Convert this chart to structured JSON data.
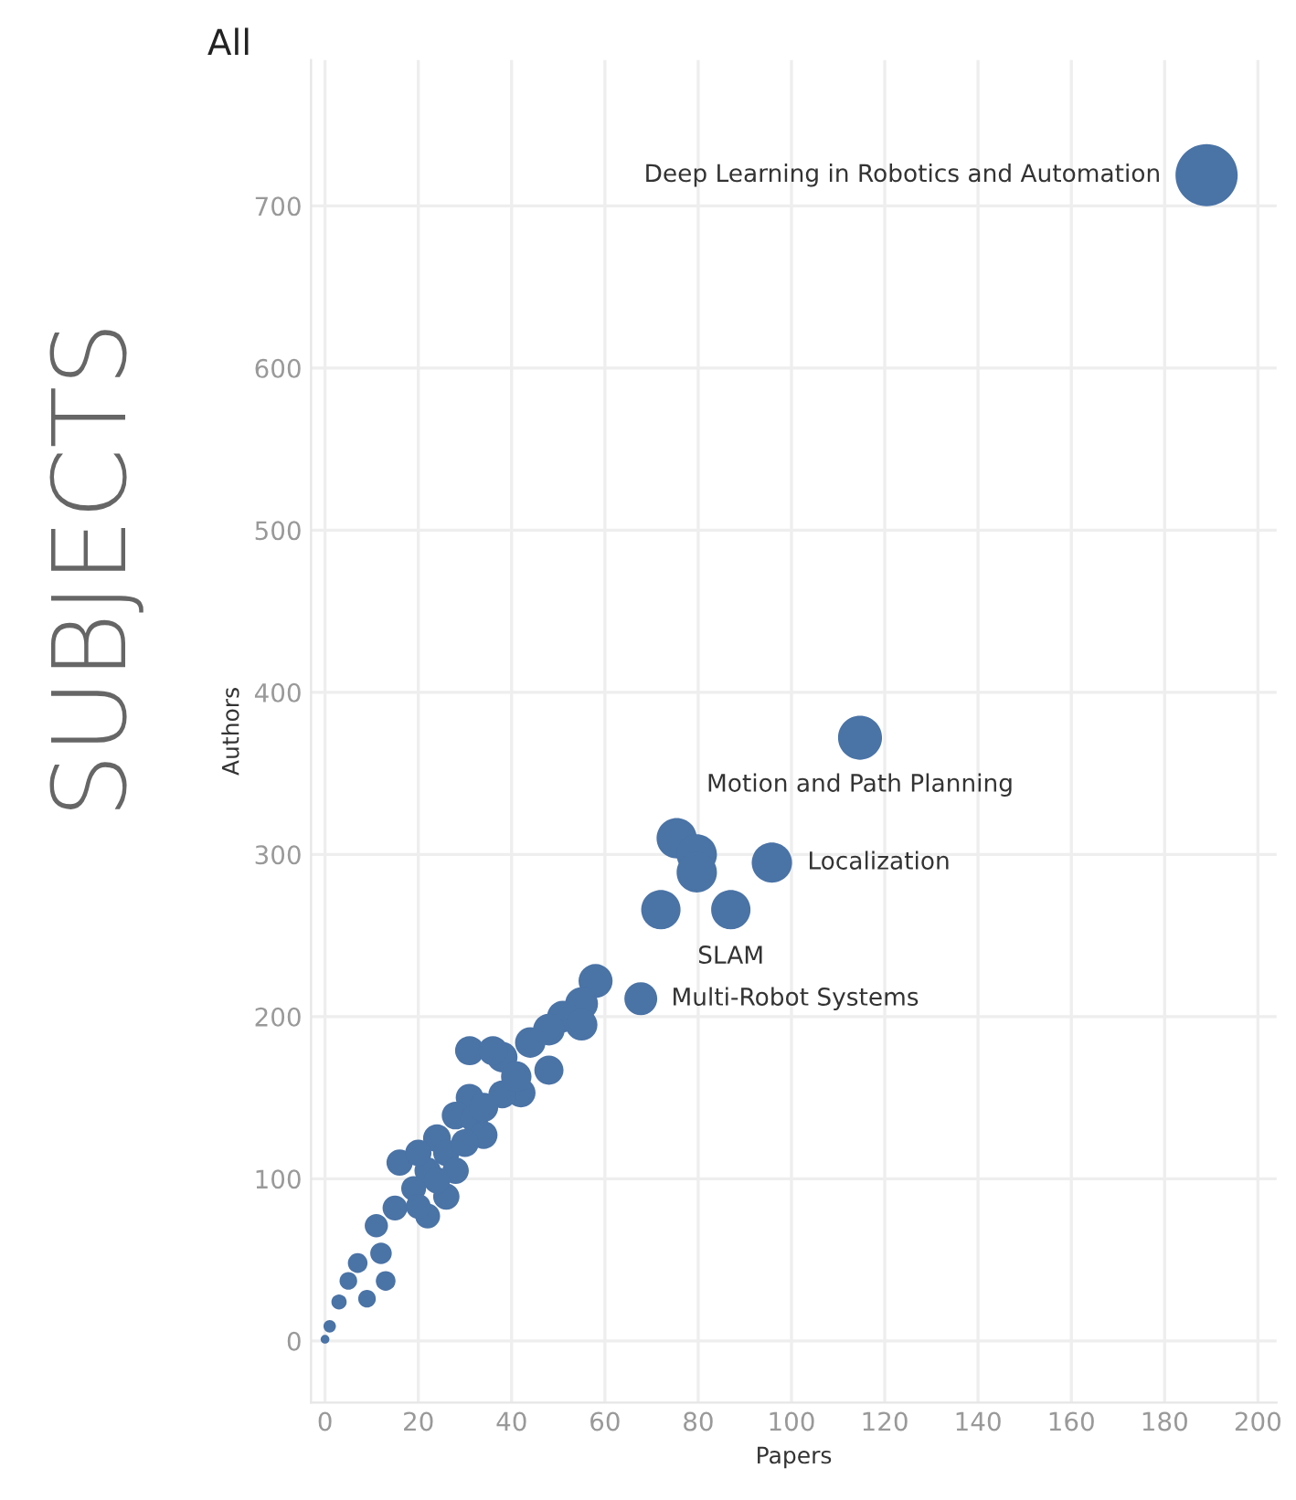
{
  "chart_data": {
    "type": "bubble",
    "title": "SUBJECTS",
    "subtitle": "All",
    "xlabel": "Papers",
    "ylabel": "Authors",
    "xlim": [
      -3,
      204
    ],
    "xticks": [
      0,
      20,
      40,
      60,
      80,
      100,
      120,
      140,
      160,
      180,
      200
    ],
    "ylim": [
      -38,
      790
    ],
    "yticks": [
      0,
      100,
      200,
      300,
      400,
      500,
      600,
      700
    ],
    "grid": true,
    "legend": false,
    "series": [
      {
        "color": "#4a73a6",
        "x": [
          189,
          114.7,
          95.8,
          75.4,
          79.7,
          79.7,
          72,
          87,
          67.7,
          58,
          55,
          51,
          48,
          44,
          38,
          31,
          36,
          48,
          42,
          38,
          31,
          28,
          24,
          26,
          22,
          16,
          19,
          15,
          11,
          12,
          7,
          5,
          3,
          1,
          0,
          32,
          34,
          28,
          22,
          20,
          26,
          55,
          24,
          20,
          13,
          9,
          30,
          34,
          41
        ],
        "values": [
          719,
          372,
          295,
          310,
          300,
          289,
          266,
          266,
          211,
          222,
          208,
          200,
          192,
          184,
          175,
          179,
          179,
          167,
          153,
          152,
          150,
          139,
          125,
          116,
          105,
          110,
          94,
          82,
          71,
          54,
          48,
          37,
          24,
          9,
          1,
          137,
          127,
          105,
          77,
          83,
          89,
          195,
          99,
          116,
          37,
          26,
          122,
          144,
          163
        ],
        "sizes": [
          1,
          0.5,
          0.42,
          0.42,
          0.42,
          0.42,
          0.4,
          0.4,
          0.28,
          0.3,
          0.28,
          0.26,
          0.26,
          0.24,
          0.24,
          0.22,
          0.22,
          0.22,
          0.22,
          0.2,
          0.2,
          0.2,
          0.2,
          0.18,
          0.18,
          0.18,
          0.16,
          0.16,
          0.14,
          0.12,
          0.1,
          0.08,
          0.06,
          0.04,
          0.02,
          0.2,
          0.2,
          0.18,
          0.16,
          0.16,
          0.18,
          0.26,
          0.18,
          0.18,
          0.1,
          0.08,
          0.2,
          0.22,
          0.24
        ]
      }
    ],
    "annotations": [
      {
        "text": "Deep Learning in Robotics and Automation",
        "x": 189,
        "y": 719
      },
      {
        "text": "Motion and Path Planning",
        "x": 114.7,
        "y": 372
      },
      {
        "text": "Localization",
        "x": 95.8,
        "y": 295
      },
      {
        "text": "SLAM",
        "x": 87,
        "y": 266
      },
      {
        "text": "Multi-Robot Systems",
        "x": 67.7,
        "y": 211
      }
    ]
  }
}
